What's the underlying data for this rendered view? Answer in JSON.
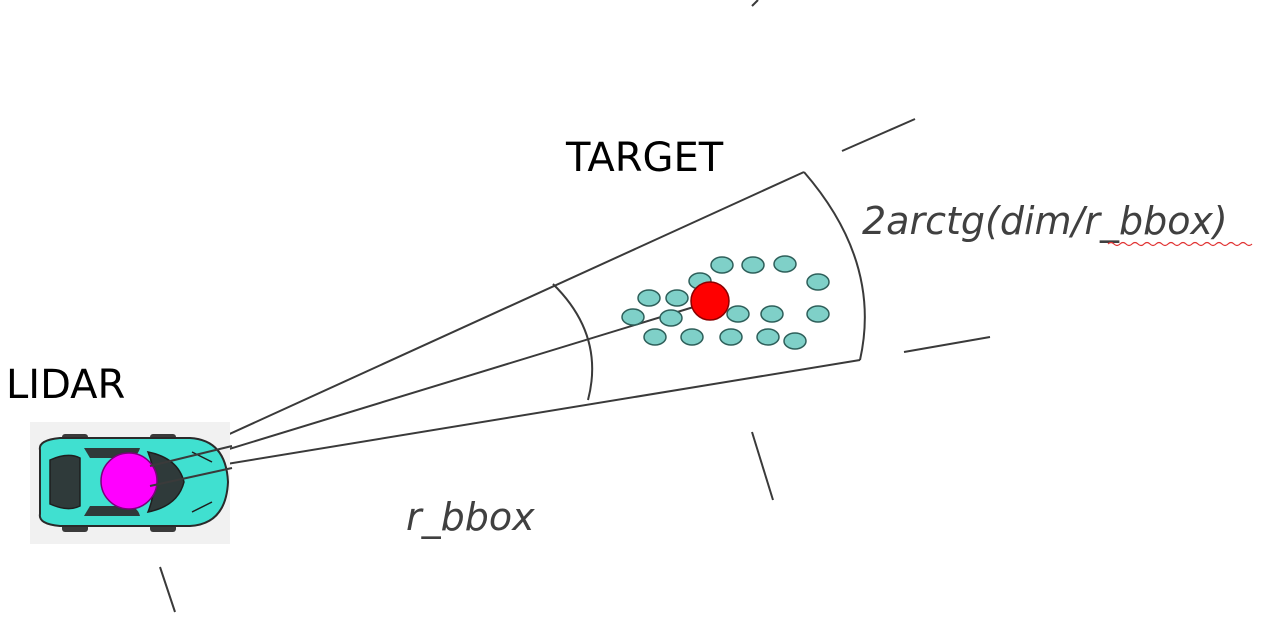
{
  "labels": {
    "lidar": "LIDAR",
    "target": "TARGET",
    "angle_formula": "2arctg(dim/r_bbox)",
    "range": "r_bbox"
  },
  "colors": {
    "car_body": "#40e0d0",
    "sensor": "#ff00ff",
    "target_center": "#ff0000",
    "target_points": "#7fd0c8",
    "lines": "#3a3a3a",
    "spellcheck_underline": "#e03030"
  },
  "icons": {
    "vehicle": "car-top-view-icon"
  }
}
